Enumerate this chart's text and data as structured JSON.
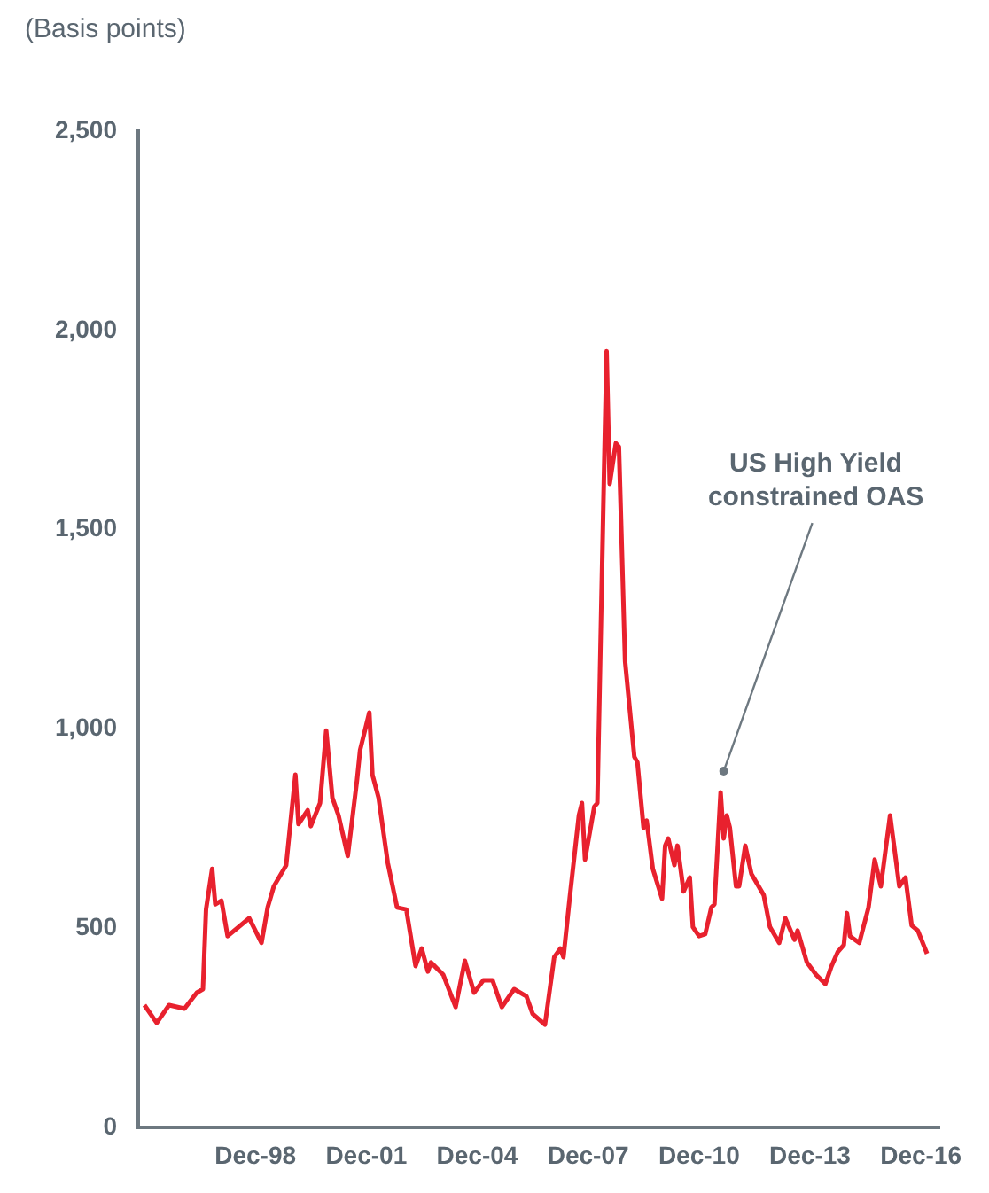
{
  "chart_data": {
    "type": "line",
    "ylabel": "(Basis points)",
    "x": [
      "1995-12",
      "1996-04",
      "1996-08",
      "1997-01",
      "1997-05",
      "1997-07",
      "1997-08",
      "1997-10",
      "1997-11",
      "1998-01",
      "1998-03",
      "1998-10",
      "1999-02",
      "1999-04",
      "1999-06",
      "1999-10",
      "2000-01",
      "2000-02",
      "2000-05",
      "2000-06",
      "2000-09",
      "2000-11",
      "2001-01",
      "2001-03",
      "2001-06",
      "2001-09",
      "2001-10",
      "2002-01",
      "2002-02",
      "2002-04",
      "2002-07",
      "2002-10",
      "2003-01",
      "2003-04",
      "2003-06",
      "2003-08",
      "2003-09",
      "2004-01",
      "2004-05",
      "2004-08",
      "2004-11",
      "2005-02",
      "2005-05",
      "2005-08",
      "2005-12",
      "2006-04",
      "2006-06",
      "2006-10",
      "2007-01",
      "2007-03",
      "2007-04",
      "2007-06",
      "2007-09",
      "2007-10",
      "2007-11",
      "2008-02",
      "2008-03",
      "2008-05",
      "2008-06",
      "2008-07",
      "2008-09",
      "2008-10",
      "2008-12",
      "2009-03",
      "2009-04",
      "2009-06",
      "2009-07",
      "2009-09",
      "2009-12",
      "2010-01",
      "2010-02",
      "2010-04",
      "2010-05",
      "2010-07",
      "2010-09",
      "2010-10",
      "2010-12",
      "2011-02",
      "2011-04",
      "2011-05",
      "2011-07",
      "2011-08",
      "2011-09",
      "2011-10",
      "2011-12",
      "2012-01",
      "2012-03",
      "2012-05",
      "2012-09",
      "2012-11",
      "2013-02",
      "2013-04",
      "2013-07",
      "2013-08",
      "2013-11",
      "2014-02",
      "2014-05",
      "2014-07",
      "2014-09",
      "2014-11",
      "2014-12",
      "2015-01",
      "2015-04",
      "2015-07",
      "2015-09",
      "2015-11",
      "2016-02",
      "2016-05",
      "2016-07",
      "2016-09",
      "2016-11",
      "2017-02"
    ],
    "series": [
      {
        "color": "#e8212e",
        "values": [
          307,
          262,
          307,
          298,
          338,
          347,
          547,
          649,
          560,
          569,
          480,
          525,
          463,
          552,
          605,
          658,
          885,
          761,
          796,
          756,
          814,
          996,
          827,
          783,
          681,
          872,
          947,
          1041,
          885,
          827,
          663,
          552,
          547,
          405,
          449,
          391,
          414,
          383,
          302,
          418,
          338,
          369,
          369,
          302,
          347,
          329,
          285,
          258,
          427,
          449,
          427,
          574,
          783,
          814,
          672,
          805,
          814,
          1583,
          1948,
          1615,
          1717,
          1708,
          1170,
          930,
          916,
          752,
          770,
          649,
          574,
          707,
          725,
          658,
          707,
          592,
          627,
          503,
          480,
          485,
          552,
          560,
          841,
          725,
          783,
          752,
          605,
          605,
          707,
          636,
          583,
          503,
          463,
          525,
          471,
          494,
          414,
          383,
          360,
          405,
          440,
          458,
          538,
          480,
          463,
          552,
          672,
          605,
          783,
          605,
          627,
          507,
          494,
          436
        ]
      }
    ],
    "xlim": [
      "1995-10",
      "2017-06"
    ],
    "xticks": [
      {
        "value": "1998-12",
        "label": "Dec-98"
      },
      {
        "value": "2001-12",
        "label": "Dec-01"
      },
      {
        "value": "2004-12",
        "label": "Dec-04"
      },
      {
        "value": "2007-12",
        "label": "Dec-07"
      },
      {
        "value": "2010-12",
        "label": "Dec-10"
      },
      {
        "value": "2013-12",
        "label": "Dec-13"
      },
      {
        "value": "2016-12",
        "label": "Dec-16"
      }
    ],
    "ylim": [
      0,
      2500
    ],
    "yticks": [
      0,
      500,
      {
        "value": 1000,
        "label": "1,000"
      },
      {
        "value": 1500,
        "label": "1,500"
      },
      {
        "value": 2000,
        "label": "2,000"
      },
      {
        "value": 2500,
        "label": "2,500"
      }
    ],
    "annotations": [
      {
        "text": "US High Yield constrained OAS",
        "x": "2011-08",
        "y": 894
      }
    ],
    "grid": false,
    "legend": false,
    "marker": "none",
    "line_style": "solid"
  }
}
